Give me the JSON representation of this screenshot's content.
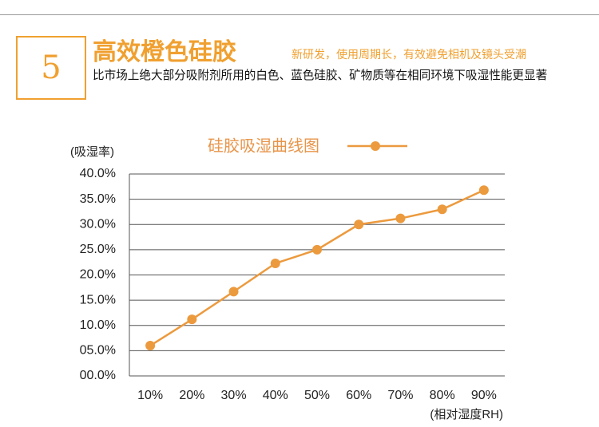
{
  "header": {
    "number": "5",
    "title": "高效橙色硅胶",
    "subtitle": "新研发，使用周期长，有效避免相机及镜头受潮",
    "description": "比市场上绝大部分吸附剂所用的白色、蓝色硅胶、矿物质等在相同环境下吸湿性能更显著"
  },
  "chart_data": {
    "type": "line",
    "title": "硅胶吸湿曲线图",
    "y_label": "(吸湿率)",
    "x_label": "(相对湿度RH)",
    "categories": [
      "10%",
      "20%",
      "30%",
      "40%",
      "50%",
      "60%",
      "70%",
      "80%",
      "90%"
    ],
    "values": [
      6.0,
      11.2,
      16.7,
      22.3,
      25.0,
      30.0,
      31.2,
      33.0,
      36.8
    ],
    "color": "#ec9a3e",
    "ylim": [
      0,
      40
    ],
    "yticks": [
      {
        "value": 0,
        "label": "00.0%"
      },
      {
        "value": 5,
        "label": "05.0%"
      },
      {
        "value": 10,
        "label": "10.0%"
      },
      {
        "value": 15,
        "label": "15.0%"
      },
      {
        "value": 20,
        "label": "20.0%"
      },
      {
        "value": 25,
        "label": "25.0%"
      },
      {
        "value": 30,
        "label": "30.0%"
      },
      {
        "value": 35,
        "label": "35.0%"
      },
      {
        "value": 40,
        "label": "40.0%"
      }
    ],
    "grid": true
  }
}
